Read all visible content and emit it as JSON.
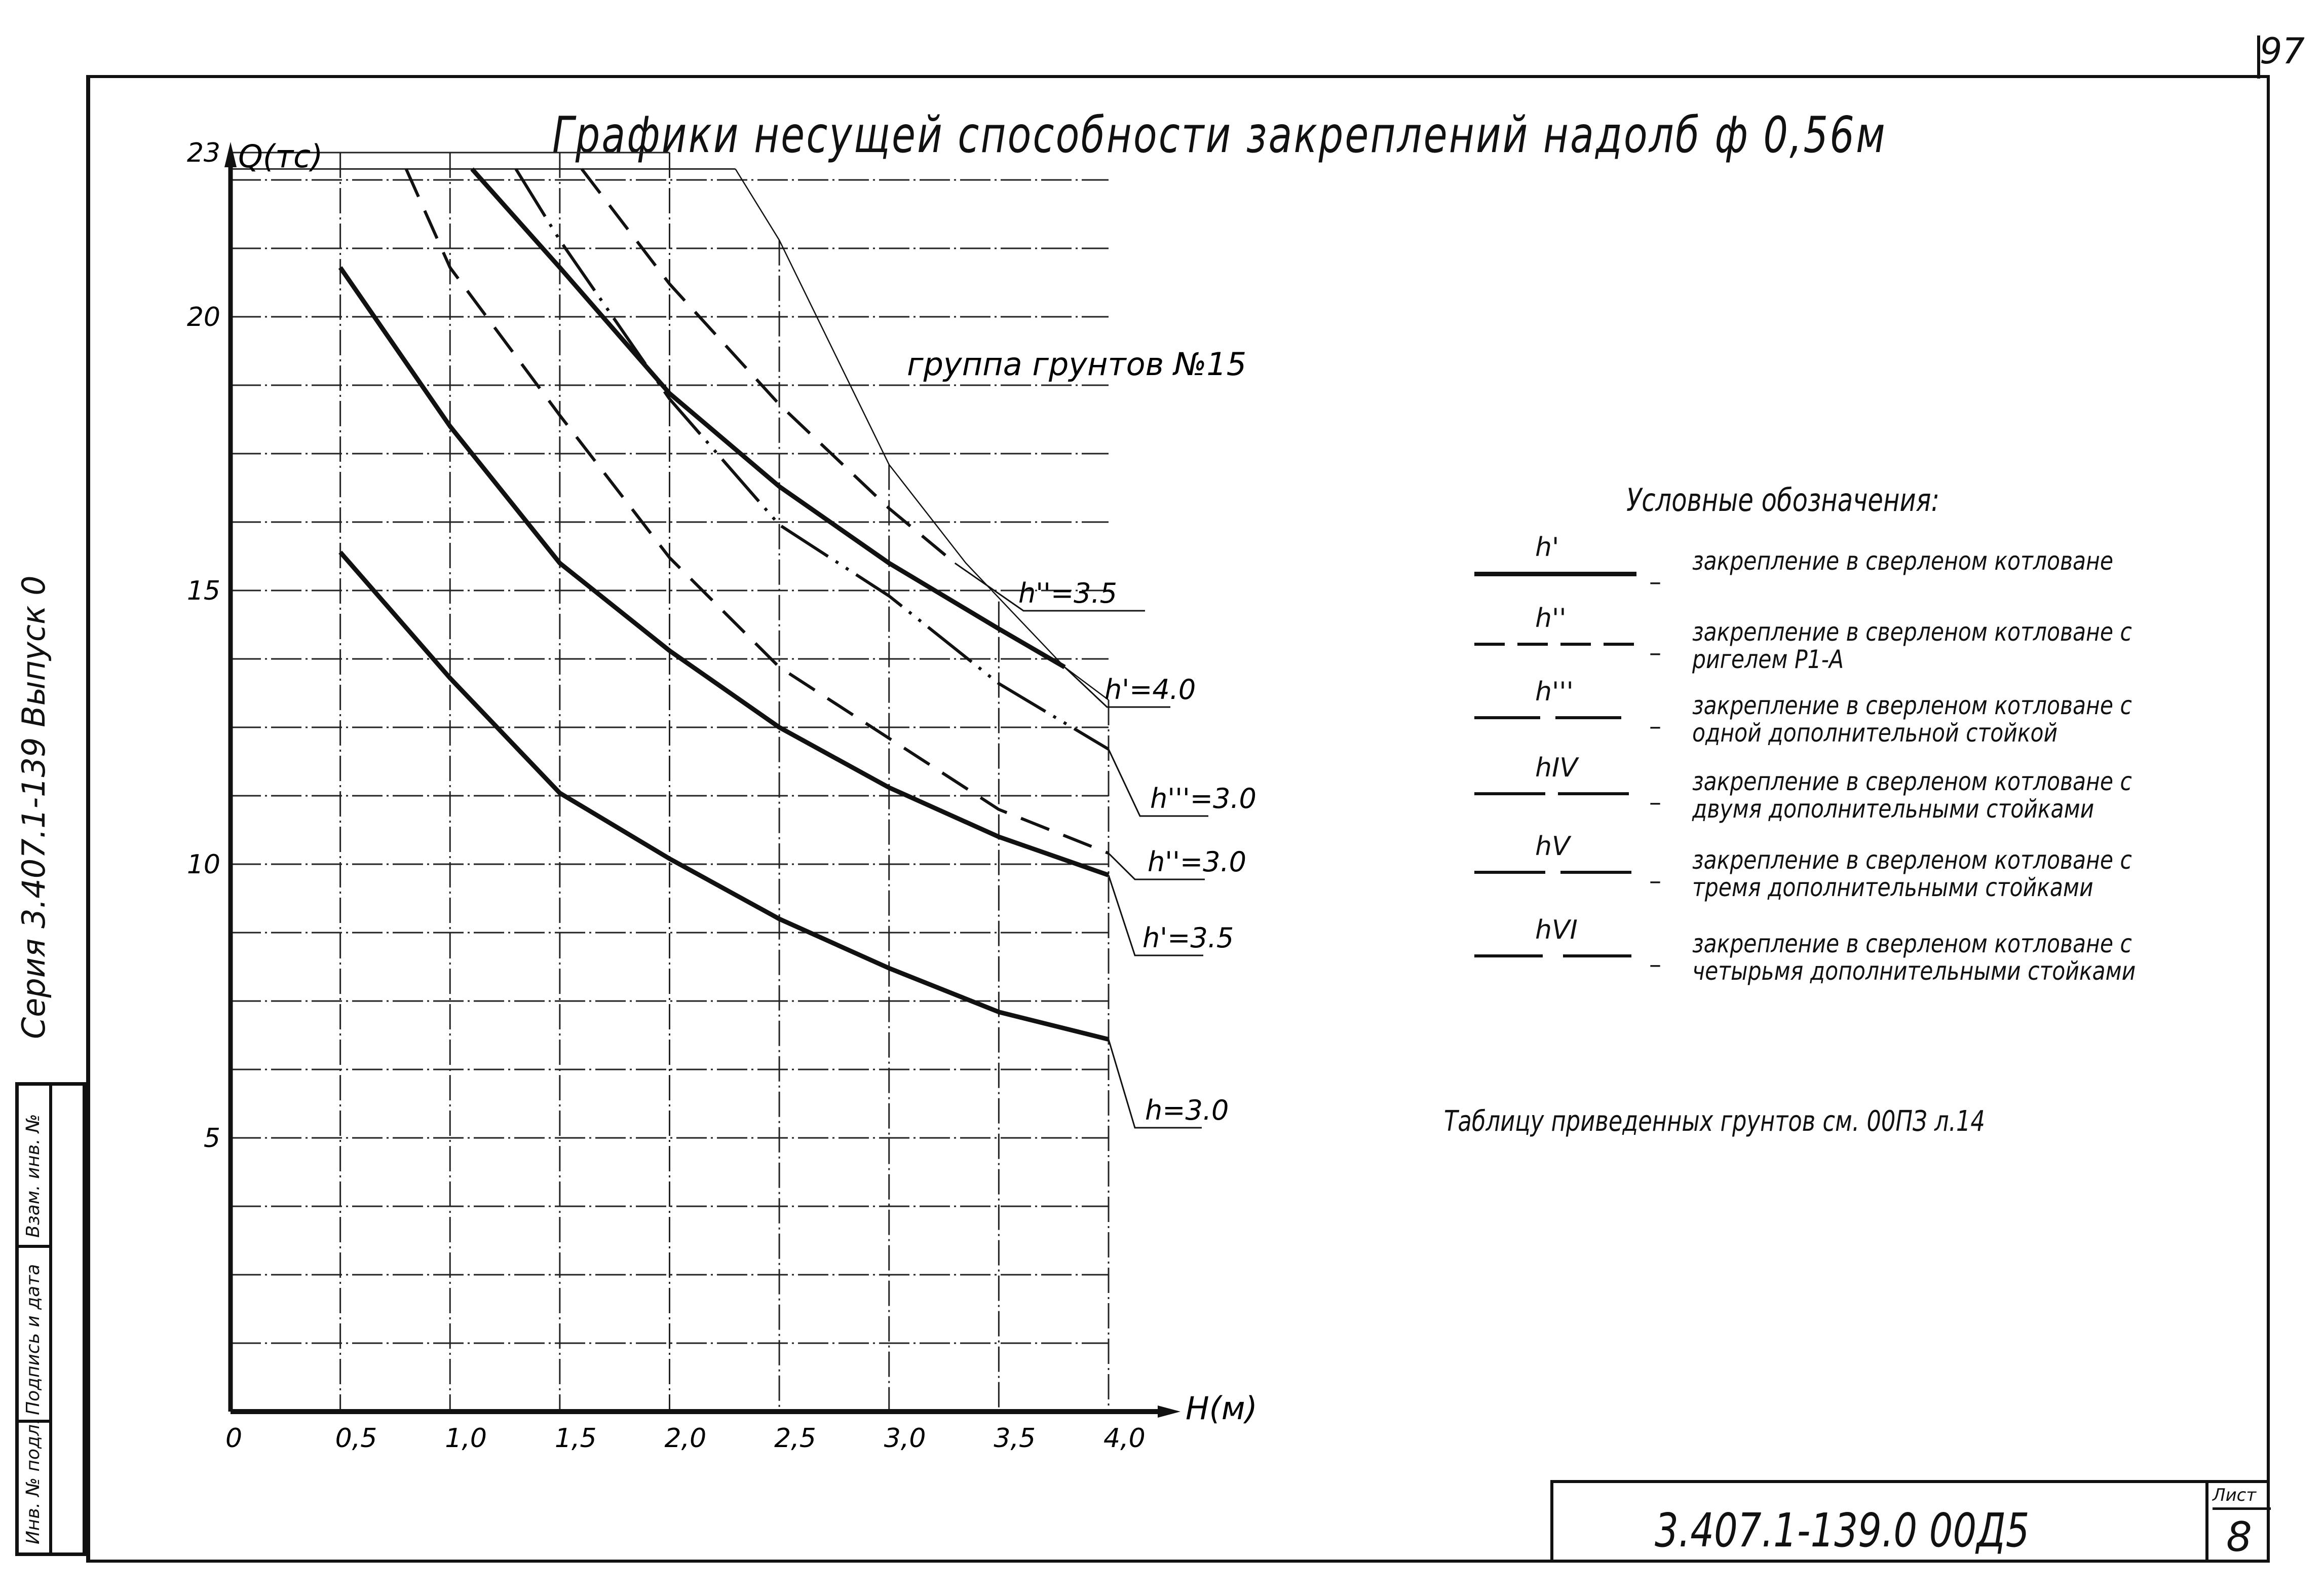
{
  "page": {
    "page_number": "97",
    "title": "Графики несущей способности закреплений надолб ф 0,56м",
    "side_series": "Серия 3.407.1-139 Выпуск 0",
    "stamp_cells": [
      "Взам. инв. №",
      "Подпись и дата",
      "Инв. № подл."
    ],
    "soil_group": "группа грунтов №15",
    "note": "Таблицу приведенных грунтов см. 00ПЗ л.14",
    "title_block": {
      "code": "3.407.1-139.0 00Д5",
      "sheet_label": "Лист",
      "sheet_number": "8"
    }
  },
  "legend": {
    "title": "Условные обозначения:",
    "items": [
      {
        "symbol": "h'",
        "style": "solid-thick",
        "marker": "",
        "text": [
          "закрепление в сверленом котловане"
        ]
      },
      {
        "symbol": "h''",
        "style": "dashed",
        "marker": "",
        "text": [
          "закрепление в сверленом котловане с",
          "ригелем Р1-А"
        ]
      },
      {
        "symbol": "h'''",
        "style": "dash-dot-dot",
        "marker": "..",
        "text": [
          "закрепление в сверленом котловане с",
          "одной дополнительной стойкой"
        ]
      },
      {
        "symbol": "hIV",
        "style": "dash-dot",
        "marker": ".",
        "text": [
          "закрепление в сверленом котловане с",
          "двумя дополнительными стойками"
        ]
      },
      {
        "symbol": "hV",
        "style": "dash-x",
        "marker": "x",
        "text": [
          "закрепление в сверленом котловане с",
          "тремя дополнительными стойками"
        ]
      },
      {
        "symbol": "hVI",
        "style": "dash-xx",
        "marker": "xx",
        "text": [
          "закрепление в сверленом котловане с",
          "четырьмя дополнительными стойками"
        ]
      }
    ]
  },
  "chart_data": {
    "type": "line",
    "title": "Графики несущей способности закреплений надолб ф 0,56м",
    "subtitle": "группа грунтов №15",
    "xlabel": "H(м)",
    "ylabel": "Q(тс)",
    "xlim": [
      0,
      4.0
    ],
    "ylim": [
      0,
      23
    ],
    "x_ticks": [
      "0",
      "0,5",
      "1,0",
      "1,5",
      "2,0",
      "2,5",
      "3,0",
      "3,5",
      "4,0"
    ],
    "y_ticks": [
      "5",
      "10",
      "15",
      "20",
      "23"
    ],
    "grid": true,
    "grid_y_step": 1.25,
    "series": [
      {
        "name": "h=3.0",
        "label": "h=3.0",
        "style": "solid",
        "x": [
          0.5,
          1.0,
          1.5,
          2.0,
          2.5,
          3.0,
          3.5,
          4.0
        ],
        "y": [
          15.7,
          13.4,
          11.3,
          10.1,
          9.0,
          8.1,
          7.3,
          6.8
        ]
      },
      {
        "name": "h'=3.5",
        "label": "h'=3.5",
        "style": "solid",
        "x": [
          0.5,
          1.0,
          1.5,
          2.0,
          2.5,
          3.0,
          3.5,
          4.0
        ],
        "y": [
          20.9,
          18.0,
          15.5,
          13.9,
          12.5,
          11.4,
          10.5,
          9.8
        ]
      },
      {
        "name": "h''=3.0",
        "label": "h''=3.0",
        "style": "dashed",
        "x": [
          0.8,
          1.0,
          1.5,
          2.0,
          2.5,
          3.0,
          3.5,
          4.0
        ],
        "y": [
          22.7,
          20.9,
          18.2,
          15.6,
          13.6,
          12.3,
          11.0,
          10.2
        ]
      },
      {
        "name": "h'''=3.0",
        "label": "h'''=3.0",
        "style": "dash-dot-dot",
        "x": [
          1.3,
          1.5,
          2.0,
          2.5,
          3.0,
          3.5,
          4.0
        ],
        "y": [
          22.7,
          21.4,
          18.5,
          16.2,
          14.9,
          13.3,
          12.1
        ]
      },
      {
        "name": "h'=4.0",
        "label": "h'=4.0",
        "style": "solid",
        "x": [
          1.1,
          1.5,
          2.0,
          2.5,
          3.0,
          3.5,
          3.8
        ],
        "y": [
          22.7,
          20.9,
          18.6,
          16.9,
          15.5,
          14.3,
          13.6
        ]
      },
      {
        "name": "h''=3.5",
        "label": "h''=3.5",
        "style": "dashed",
        "x": [
          1.6,
          2.0,
          2.5,
          3.0,
          3.3
        ],
        "y": [
          22.7,
          20.6,
          18.4,
          16.5,
          15.5
        ]
      },
      {
        "name": "envelope",
        "label": "",
        "style": "thin",
        "x": [
          2.3,
          2.5,
          3.0,
          3.35,
          3.8,
          4.0
        ],
        "y": [
          22.7,
          21.4,
          17.3,
          15.5,
          13.6,
          13.0
        ]
      }
    ],
    "annotations": [
      {
        "text": "h''=3.5",
        "x": 3.3,
        "y": 15.5
      },
      {
        "text": "h'=4.0",
        "x": 3.8,
        "y": 13.6
      },
      {
        "text": "h'''=3.0",
        "x": 4.0,
        "y": 12.1
      },
      {
        "text": "h''=3.0",
        "x": 4.0,
        "y": 10.2
      },
      {
        "text": "h'=3.5",
        "x": 4.0,
        "y": 9.8
      },
      {
        "text": "h=3.0",
        "x": 4.0,
        "y": 6.8
      }
    ]
  }
}
